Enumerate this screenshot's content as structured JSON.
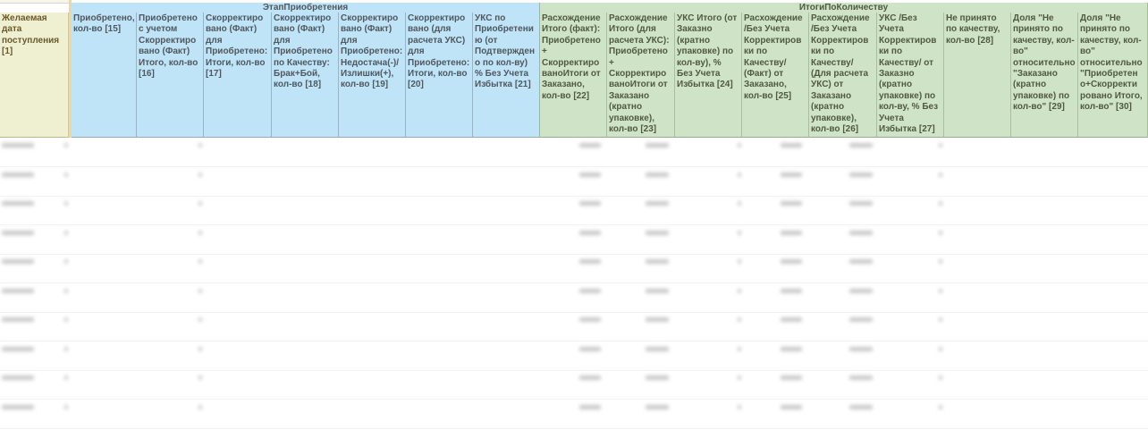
{
  "groups": [
    {
      "label": "ЭтапПриобретения",
      "color": "#bfe3f7"
    },
    {
      "label": "ИтогиПоКоличеству",
      "color": "#cfe3c6"
    }
  ],
  "first_column": {
    "label": "Желаемая дата поступления [1]",
    "color": "#efefd2"
  },
  "blue_columns": [
    "Приобретено, кол-во [15]",
    "Приобретено с учетом Скорректиро вано (Факт) Итого, кол-во [16]",
    "Скорректиро вано (Факт) для Приобретено: Итоги, кол-во [17]",
    "Скорректиро вано (Факт) для Приобретено по Качеству: Брак+Бой, кол-во [18]",
    "Скорректиро вано (Факт) для Приобретено: Недостача(-)/ Излишки(+), кол-во [19]",
    "Скорректиро вано (для расчета УКС) для Приобретено: Итоги, кол-во [20]",
    "УКС по Приобретени ю (от Подтвержден о по кол-ву) % Без Учета Избытка [21]"
  ],
  "green_columns": [
    "Расхождение Итого (факт): Приобретено + Скорректиро ваноИтоги от Заказано, кол-во [22]",
    "Расхождение Итого (для расчета УКС): Приобретено + Скорректиро ваноИтоги от Заказано (кратно упаковке), кол-во [23]",
    "УКС Итого (от Заказно (кратно упаковке) по кол-ву), % Без Учета Избытка [24]",
    "Расхождение /Без Учета Корректиров ки по Качеству/ (Факт) от Заказано, кол-во [25]",
    "Расхождение /Без Учета Корректиров ки по Качеству/ (Для расчета УКС) от Заказано (кратно упаковке), кол-во [26]",
    "УКС /Без Учета Корректиров ки по Качеству/ от Заказно (кратно упаковке) по кол-ву, % Без Учета Избытка [27]",
    "Не принято по качеству, кол-во [28]",
    "Доля \"Не принято по качеству, кол-во\" относительно \"Заказано (кратно упаковке) по кол-во\" [29]",
    "Доля \"Не принято по качеству, кол-во\" относительно \"Приобретен о+Скорректи ровано Итого, кол-во\" [30]"
  ],
  "rows_blurred": true
}
